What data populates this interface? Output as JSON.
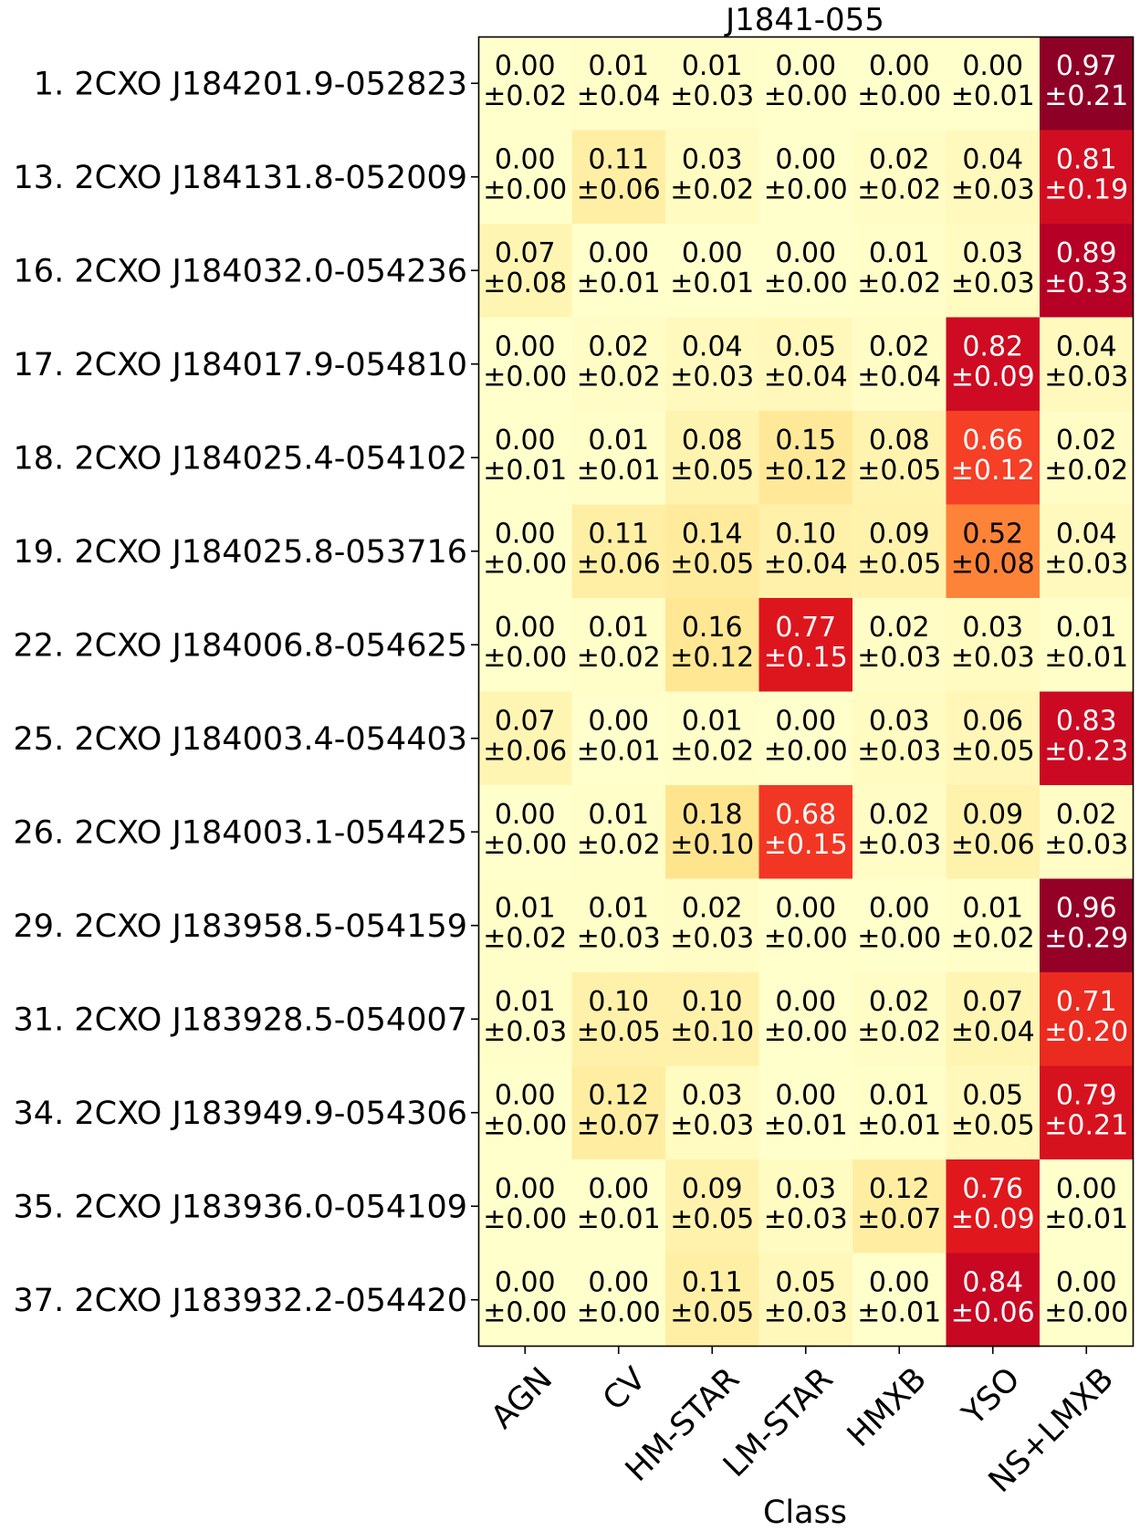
{
  "chart_data": {
    "type": "heatmap",
    "title": "J1841-055",
    "xlabel": "Class",
    "ylabel": "",
    "colormap": "YlOrRd",
    "value_range": [
      0,
      1
    ],
    "columns": [
      "AGN",
      "CV",
      "HM-STAR",
      "LM-STAR",
      "HMXB",
      "YSO",
      "NS+LMXB"
    ],
    "rows": [
      "1. 2CXO J184201.9-052823",
      "13. 2CXO J184131.8-052009",
      "16. 2CXO J184032.0-054236",
      "17. 2CXO J184017.9-054810",
      "18. 2CXO J184025.4-054102",
      "19. 2CXO J184025.8-053716",
      "22. 2CXO J184006.8-054625",
      "25. 2CXO J184003.4-054403",
      "26. 2CXO J184003.1-054425",
      "29. 2CXO J183958.5-054159",
      "31. 2CXO J183928.5-054007",
      "34. 2CXO J183949.9-054306",
      "35. 2CXO J183936.0-054109",
      "37. 2CXO J183932.2-054420"
    ],
    "values": [
      [
        0.0,
        0.01,
        0.01,
        0.0,
        0.0,
        0.0,
        0.97
      ],
      [
        0.0,
        0.11,
        0.03,
        0.0,
        0.02,
        0.04,
        0.81
      ],
      [
        0.07,
        0.0,
        0.0,
        0.0,
        0.01,
        0.03,
        0.89
      ],
      [
        0.0,
        0.02,
        0.04,
        0.05,
        0.02,
        0.82,
        0.04
      ],
      [
        0.0,
        0.01,
        0.08,
        0.15,
        0.08,
        0.66,
        0.02
      ],
      [
        0.0,
        0.11,
        0.14,
        0.1,
        0.09,
        0.52,
        0.04
      ],
      [
        0.0,
        0.01,
        0.16,
        0.77,
        0.02,
        0.03,
        0.01
      ],
      [
        0.07,
        0.0,
        0.01,
        0.0,
        0.03,
        0.06,
        0.83
      ],
      [
        0.0,
        0.01,
        0.18,
        0.68,
        0.02,
        0.09,
        0.02
      ],
      [
        0.01,
        0.01,
        0.02,
        0.0,
        0.0,
        0.01,
        0.96
      ],
      [
        0.01,
        0.1,
        0.1,
        0.0,
        0.02,
        0.07,
        0.71
      ],
      [
        0.0,
        0.12,
        0.03,
        0.0,
        0.01,
        0.05,
        0.79
      ],
      [
        0.0,
        0.0,
        0.09,
        0.03,
        0.12,
        0.76,
        0.0
      ],
      [
        0.0,
        0.0,
        0.11,
        0.05,
        0.0,
        0.84,
        0.0
      ]
    ],
    "errors": [
      [
        0.02,
        0.04,
        0.03,
        0.0,
        0.0,
        0.01,
        0.21
      ],
      [
        0.0,
        0.06,
        0.02,
        0.0,
        0.02,
        0.03,
        0.19
      ],
      [
        0.08,
        0.01,
        0.01,
        0.0,
        0.02,
        0.03,
        0.33
      ],
      [
        0.0,
        0.02,
        0.03,
        0.04,
        0.04,
        0.09,
        0.03
      ],
      [
        0.01,
        0.01,
        0.05,
        0.12,
        0.05,
        0.12,
        0.02
      ],
      [
        0.0,
        0.06,
        0.05,
        0.04,
        0.05,
        0.08,
        0.03
      ],
      [
        0.0,
        0.02,
        0.12,
        0.15,
        0.03,
        0.03,
        0.01
      ],
      [
        0.06,
        0.01,
        0.02,
        0.0,
        0.03,
        0.05,
        0.23
      ],
      [
        0.0,
        0.02,
        0.1,
        0.15,
        0.03,
        0.06,
        0.03
      ],
      [
        0.02,
        0.03,
        0.03,
        0.0,
        0.0,
        0.02,
        0.29
      ],
      [
        0.03,
        0.05,
        0.1,
        0.0,
        0.02,
        0.04,
        0.2
      ],
      [
        0.0,
        0.07,
        0.03,
        0.01,
        0.01,
        0.05,
        0.21
      ],
      [
        0.0,
        0.01,
        0.05,
        0.03,
        0.07,
        0.09,
        0.01
      ],
      [
        0.0,
        0.0,
        0.05,
        0.03,
        0.01,
        0.06,
        0.0
      ]
    ]
  }
}
